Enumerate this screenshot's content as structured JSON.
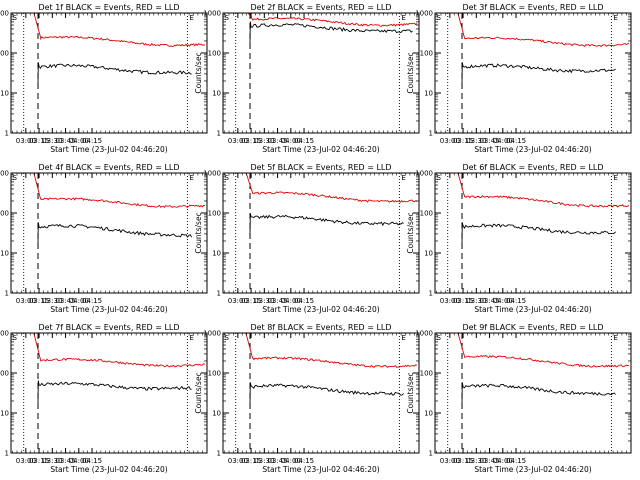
{
  "chart_data": {
    "type": "line",
    "y_scale": "log",
    "ylim": [
      1,
      1000
    ],
    "xlim": [
      2.72,
      6.42
    ],
    "ylabel": "Counts/sec",
    "xlabel": "Start Time (23-Jul-02 04:46:20)",
    "x_ticks": [
      3.0,
      3.25,
      3.5,
      3.75,
      4.0,
      4.25
    ],
    "x_tick_labels": [
      "03:00",
      "03:15",
      "03:30",
      "03:45",
      "04:00",
      "04:15"
    ],
    "y_ticks": [
      1,
      10,
      100,
      1000
    ],
    "y_tick_labels": [
      "1",
      "10",
      "100",
      "1000"
    ],
    "legend": "BLACK = Events, RED = LLD",
    "series_colors": {
      "events": "#000000",
      "lld": "#e00000"
    },
    "marker_labels": {
      "start": "S",
      "end": "E"
    },
    "panels": [
      {
        "detector": "Det 1f",
        "title": "Det 1f BLACK = Events, RED = LLD",
        "dotted_x": [
          2.96,
          6.05
        ],
        "dashed_x": 3.23,
        "end_x": 6.38,
        "red_start": 1000,
        "red_plateau": 210,
        "red_end": 160,
        "black_start_x": 3.23,
        "black_plateau": 45,
        "black_end": 30,
        "black_end_x": 6.13
      },
      {
        "detector": "Det 2f",
        "title": "Det 2f BLACK = Events, RED = LLD",
        "dotted_x": [
          2.96,
          6.05
        ],
        "dashed_x": 3.23,
        "end_x": 6.38,
        "red_start": 1000,
        "red_plateau": 600,
        "red_end": 520,
        "black_start_x": 3.23,
        "black_plateau": 470,
        "black_end": 330,
        "black_end_x": 6.3
      },
      {
        "detector": "Det 3f",
        "title": "Det 3f BLACK = Events, RED = LLD",
        "dotted_x": [
          2.96,
          6.05
        ],
        "dashed_x": 3.23,
        "end_x": 6.38,
        "red_start": 1000,
        "red_plateau": 200,
        "red_end": 160,
        "black_start_x": 3.23,
        "black_plateau": 45,
        "black_end": 35,
        "black_end_x": 6.13
      },
      {
        "detector": "Det 4f",
        "title": "Det 4f BLACK = Events, RED = LLD",
        "dotted_x": [
          2.96,
          6.05
        ],
        "dashed_x": 3.23,
        "end_x": 6.38,
        "red_start": 1000,
        "red_plateau": 190,
        "red_end": 150,
        "black_start_x": 3.23,
        "black_plateau": 45,
        "black_end": 25,
        "black_end_x": 6.13
      },
      {
        "detector": "Det 5f",
        "title": "Det 5f BLACK = Events, RED = LLD",
        "dotted_x": [
          2.96,
          6.05
        ],
        "dashed_x": 3.23,
        "end_x": 6.38,
        "red_start": 1000,
        "red_plateau": 270,
        "red_end": 200,
        "black_start_x": 3.23,
        "black_plateau": 75,
        "black_end": 50,
        "black_end_x": 6.13
      },
      {
        "detector": "Det 6f",
        "title": "Det 6f BLACK = Events, RED = LLD",
        "dotted_x": [
          2.96,
          6.05
        ],
        "dashed_x": 3.23,
        "end_x": 6.38,
        "red_start": 1000,
        "red_plateau": 220,
        "red_end": 150,
        "black_start_x": 3.23,
        "black_plateau": 45,
        "black_end": 30,
        "black_end_x": 6.13
      },
      {
        "detector": "Det 7f",
        "title": "Det 7f BLACK = Events, RED = LLD",
        "dotted_x": [
          2.96,
          6.05
        ],
        "dashed_x": 3.23,
        "end_x": 6.38,
        "red_start": 1000,
        "red_plateau": 180,
        "red_end": 160,
        "black_start_x": 3.23,
        "black_plateau": 50,
        "black_end": 40,
        "black_end_x": 6.13
      },
      {
        "detector": "Det 8f",
        "title": "Det 8f BLACK = Events, RED = LLD",
        "dotted_x": [
          2.96,
          6.05
        ],
        "dashed_x": 3.23,
        "end_x": 6.38,
        "red_start": 1000,
        "red_plateau": 200,
        "red_end": 150,
        "black_start_x": 3.23,
        "black_plateau": 45,
        "black_end": 28,
        "black_end_x": 6.13
      },
      {
        "detector": "Det 9f",
        "title": "Det 9f BLACK = Events, RED = LLD",
        "dotted_x": [
          2.96,
          6.05
        ],
        "dashed_x": 3.23,
        "end_x": 6.38,
        "red_start": 1000,
        "red_plateau": 220,
        "red_end": 150,
        "black_start_x": 3.23,
        "black_plateau": 45,
        "black_end": 28,
        "black_end_x": 6.13
      }
    ]
  }
}
